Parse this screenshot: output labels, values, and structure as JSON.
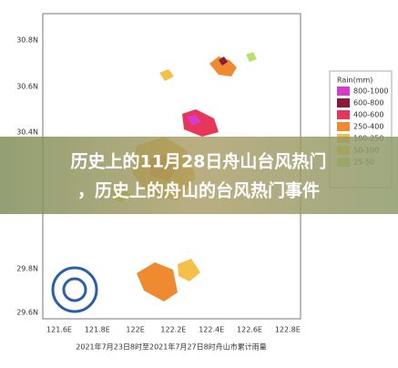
{
  "map": {
    "y_labels": [
      "30.8N",
      "30.6N",
      "30.4N",
      "29.8N",
      "29.6N"
    ],
    "x_labels": [
      "121.6E",
      "121.8E",
      "122E",
      "122.2E",
      "122.4E",
      "122.6E",
      "122.8E"
    ],
    "caption": "2021年7月23日8时至2021年7月27日8时舟山市累计雨量",
    "legend": {
      "title": "Rain(mm)",
      "items": [
        {
          "label": "800-1000",
          "color": "#d63cc8"
        },
        {
          "label": "600-800",
          "color": "#8b1a3a"
        },
        {
          "label": "400-600",
          "color": "#e8355a"
        },
        {
          "label": "250-400",
          "color": "#f08a30"
        },
        {
          "label": "100-250",
          "color": "#f5c04a"
        },
        {
          "label": "50-100",
          "color": "#e6e640"
        },
        {
          "label": "25-50",
          "color": "#b8e070"
        }
      ]
    }
  },
  "banner": {
    "lines": [
      "历史上的11月28日舟山台风热门",
      "，历史上的舟山的台风热门事件"
    ]
  }
}
